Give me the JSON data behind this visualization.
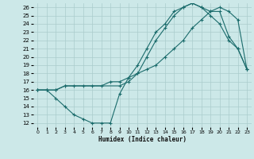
{
  "xlabel": "Humidex (Indice chaleur)",
  "background_color": "#cce8e8",
  "grid_color": "#aacccc",
  "line_color": "#1a6b6b",
  "xlim": [
    -0.5,
    23.5
  ],
  "ylim": [
    11.5,
    26.5
  ],
  "xticks": [
    0,
    1,
    2,
    3,
    4,
    5,
    6,
    7,
    8,
    9,
    10,
    11,
    12,
    13,
    14,
    15,
    16,
    17,
    18,
    19,
    20,
    21,
    22,
    23
  ],
  "yticks": [
    12,
    13,
    14,
    15,
    16,
    17,
    18,
    19,
    20,
    21,
    22,
    23,
    24,
    25,
    26
  ],
  "curve1_x": [
    0,
    1,
    2,
    3,
    4,
    5,
    6,
    7,
    8,
    9,
    10,
    11,
    12,
    13,
    14,
    15,
    16,
    17,
    18,
    19,
    20,
    21,
    22,
    23
  ],
  "curve1_y": [
    16,
    16,
    15,
    14,
    13,
    12.5,
    12,
    12,
    12,
    15.5,
    17.5,
    19,
    21,
    23,
    24,
    25.5,
    26,
    26.5,
    26,
    25,
    24,
    22,
    21,
    18.5
  ],
  "curve2_x": [
    0,
    1,
    2,
    3,
    4,
    5,
    6,
    7,
    8,
    9,
    10,
    11,
    12,
    13,
    14,
    15,
    16,
    17,
    18,
    19,
    20,
    21,
    22,
    23
  ],
  "curve2_y": [
    16,
    16,
    16,
    16.5,
    16.5,
    16.5,
    16.5,
    16.5,
    17,
    17,
    17.5,
    18,
    18.5,
    19,
    20,
    21,
    22,
    23.5,
    24.5,
    25.5,
    26,
    25.5,
    24.5,
    18.5
  ],
  "curve3_x": [
    0,
    1,
    2,
    3,
    9,
    10,
    11,
    12,
    13,
    14,
    15,
    16,
    17,
    18,
    19,
    20,
    21,
    22,
    23
  ],
  "curve3_y": [
    16,
    16,
    16,
    16.5,
    16.5,
    17,
    18,
    20,
    22,
    23.5,
    25,
    26,
    26.5,
    26,
    25.5,
    25.5,
    22.5,
    21,
    18.5
  ]
}
